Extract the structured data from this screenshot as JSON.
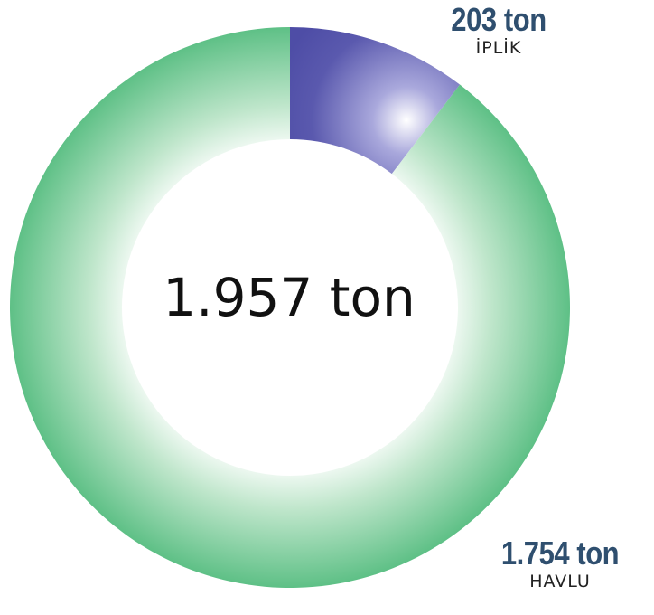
{
  "chart_data": {
    "type": "pie",
    "variant": "donut",
    "total_label": "1.957 ton",
    "slices": [
      {
        "category": "İPLİK",
        "value": 203,
        "value_label": "203 ton",
        "color": "#4e4da6"
      },
      {
        "category": "HAVLU",
        "value": 1754,
        "value_label": "1.754 ton",
        "color": "#5ec086"
      }
    ]
  }
}
